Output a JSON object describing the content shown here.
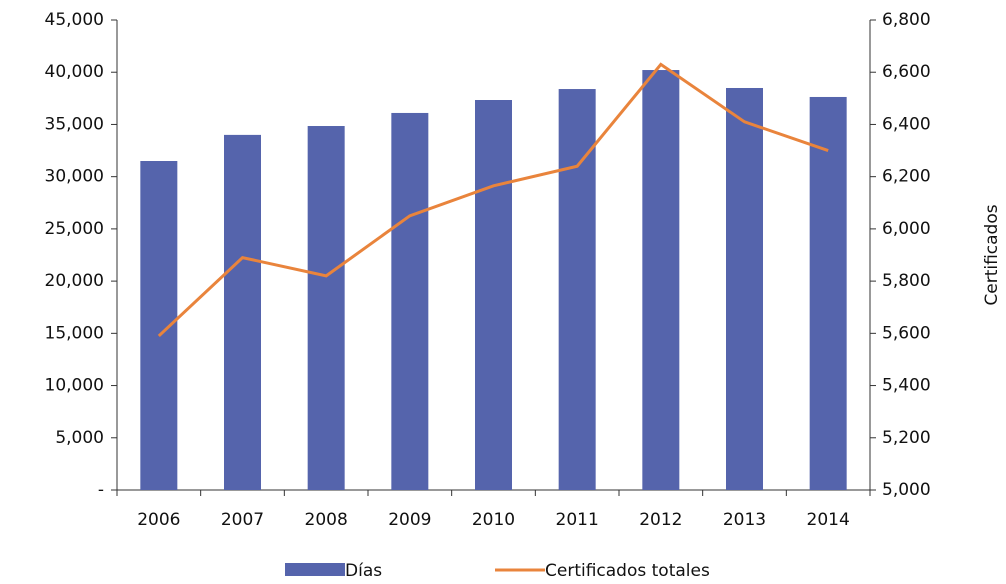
{
  "chart_data": {
    "type": "bar_line",
    "y2label": "Certificados",
    "categories": [
      "2006",
      "2007",
      "2008",
      "2009",
      "2010",
      "2011",
      "2012",
      "2013",
      "2014"
    ],
    "series": [
      {
        "name": "Días",
        "type": "bar",
        "color": "#5564ac",
        "values": [
          31500,
          34000,
          34850,
          36100,
          37340,
          38390,
          40210,
          38490,
          37630
        ]
      },
      {
        "name": "Certificados totales",
        "type": "line",
        "axis": "y2",
        "color": "#e9843c",
        "values": [
          5590,
          5890,
          5820,
          6050,
          6165,
          6240,
          6630,
          6410,
          6300
        ]
      }
    ],
    "ylim": [
      0,
      45000
    ],
    "yticks": [
      {
        "value": 0,
        "label": "-"
      },
      {
        "value": 5000,
        "label": "5,000"
      },
      {
        "value": 10000,
        "label": "10,000"
      },
      {
        "value": 15000,
        "label": "15,000"
      },
      {
        "value": 20000,
        "label": "20,000"
      },
      {
        "value": 25000,
        "label": "25,000"
      },
      {
        "value": 30000,
        "label": "30,000"
      },
      {
        "value": 35000,
        "label": "35,000"
      },
      {
        "value": 40000,
        "label": "40,000"
      },
      {
        "value": 45000,
        "label": "45,000"
      }
    ],
    "y2lim": [
      5000,
      6800
    ],
    "y2ticks": [
      {
        "value": 5000,
        "label": "5,000"
      },
      {
        "value": 5200,
        "label": "5,200"
      },
      {
        "value": 5400,
        "label": "5,400"
      },
      {
        "value": 5600,
        "label": "5,600"
      },
      {
        "value": 5800,
        "label": "5,800"
      },
      {
        "value": 6000,
        "label": "6,000"
      },
      {
        "value": 6200,
        "label": "6,200"
      },
      {
        "value": 6400,
        "label": "6,400"
      },
      {
        "value": 6600,
        "label": "6,600"
      },
      {
        "value": 6800,
        "label": "6,800"
      }
    ],
    "grid": false,
    "legend": "bottom"
  }
}
